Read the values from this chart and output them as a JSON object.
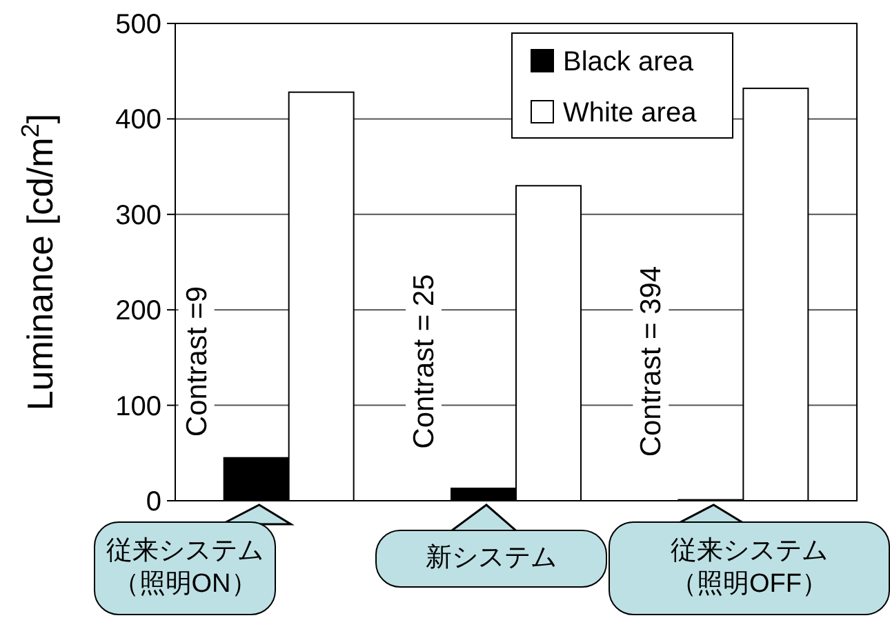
{
  "chart_data": {
    "type": "bar",
    "ylabel": "Luminance [cd/m$^{2}$]",
    "categories": [
      "従来システム（照明ON）",
      "新システム",
      "従来システム（照明OFF）"
    ],
    "series": [
      {
        "name": "Black area",
        "color": "#000000",
        "values": [
          45,
          13,
          1
        ]
      },
      {
        "name": "White area",
        "color": "#ffffff",
        "values": [
          428,
          330,
          432
        ]
      }
    ],
    "ylim": [
      0,
      500
    ],
    "yticks": [
      0,
      100,
      200,
      300,
      400,
      500
    ],
    "grid": "y",
    "legend": "top right",
    "annotations": [
      "Contrast =9",
      "Contrast = 25",
      "Contrast = 394"
    ]
  }
}
